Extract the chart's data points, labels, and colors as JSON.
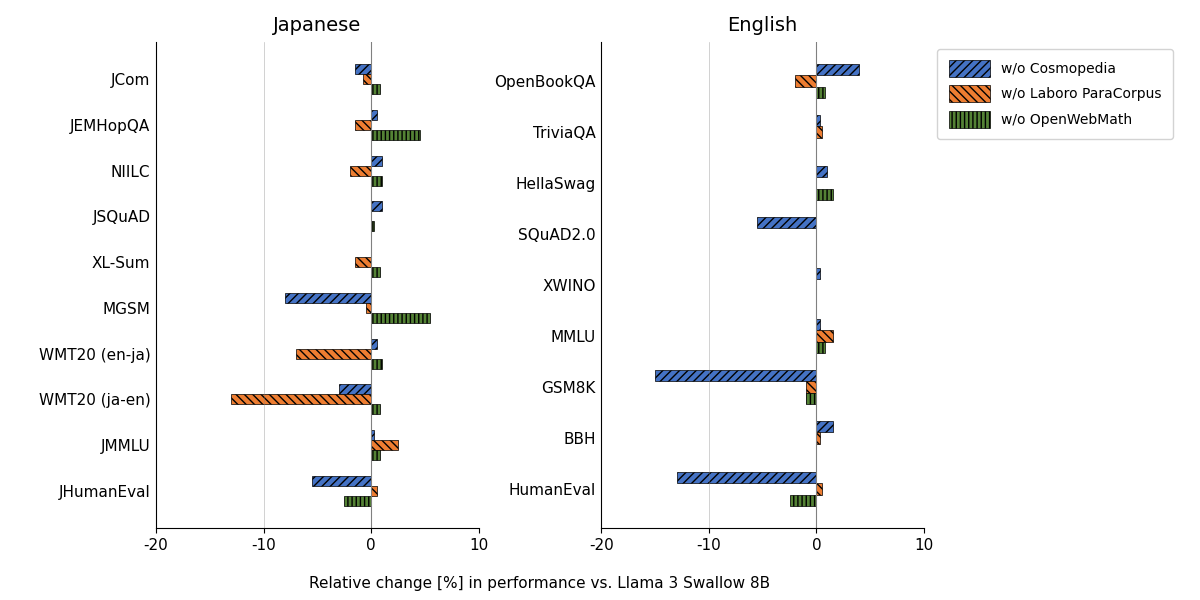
{
  "japanese_categories": [
    "JCom",
    "JEMHopQA",
    "NIILC",
    "JSQuAD",
    "XL-Sum",
    "MGSM",
    "WMT20 (en-ja)",
    "WMT20 (ja-en)",
    "JMMLU",
    "JHumanEval"
  ],
  "japanese_cosmopedia": [
    -1.5,
    0.5,
    1.0,
    1.0,
    0.0,
    -8.0,
    0.5,
    -3.0,
    0.3,
    -5.5
  ],
  "japanese_laboro": [
    -0.8,
    -1.5,
    -2.0,
    0.0,
    -1.5,
    -0.5,
    -7.0,
    -13.0,
    2.5,
    0.5
  ],
  "japanese_openwebmath": [
    0.8,
    4.5,
    1.0,
    0.3,
    0.8,
    5.5,
    1.0,
    0.8,
    0.8,
    -2.5
  ],
  "english_categories": [
    "OpenBookQA",
    "TriviaQA",
    "HellaSwag",
    "SQuAD2.0",
    "XWINO",
    "MMLU",
    "GSM8K",
    "BBH",
    "HumanEval"
  ],
  "english_cosmopedia": [
    4.0,
    0.3,
    1.0,
    -5.5,
    0.3,
    0.3,
    -15.0,
    1.5,
    -13.0
  ],
  "english_laboro": [
    -2.0,
    0.5,
    0.0,
    0.0,
    0.0,
    1.5,
    -1.0,
    0.3,
    0.5
  ],
  "english_openwebmath": [
    0.8,
    0.0,
    1.5,
    0.0,
    0.0,
    0.8,
    -1.0,
    0.0,
    -2.5
  ],
  "color_cosmopedia": "#4472C4",
  "color_laboro": "#ED7D31",
  "color_openwebmath": "#548235",
  "title_japanese": "Japanese",
  "title_english": "English",
  "xlabel": "Relative change [%] in performance vs. Llama 3 Swallow 8B",
  "xlim": [
    -20,
    10
  ],
  "xticks": [
    -20,
    -10,
    0,
    10
  ],
  "legend_labels": [
    "w/o Cosmopedia",
    "w/o Laboro ParaCorpus",
    "w/o OpenWebMath"
  ],
  "bar_height": 0.22,
  "figsize": [
    12.0,
    6.0
  ],
  "title_fontsize": 14,
  "tick_fontsize": 11,
  "xlabel_fontsize": 11,
  "legend_fontsize": 10
}
